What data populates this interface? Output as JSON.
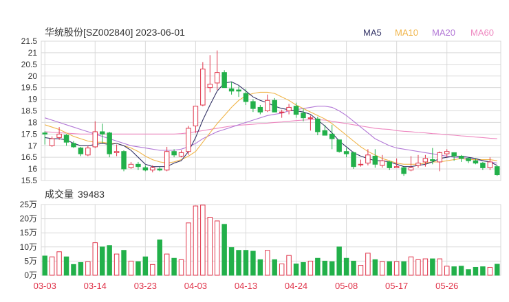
{
  "chart_data": {
    "type": "candlestick",
    "title": "华统股份[SZ002840] 2023-06-01",
    "legend": [
      {
        "label": "MA5",
        "color": "#333366"
      },
      {
        "label": "MA10",
        "color": "#f0b448"
      },
      {
        "label": "MA20",
        "color": "#b277d6"
      },
      {
        "label": "MA60",
        "color": "#ee88c0"
      }
    ],
    "colors": {
      "up": "#e0344a",
      "down": "#22b04a",
      "grid": "#d9d9d9",
      "axis": "#333333",
      "date": "#e0344a"
    },
    "price_axis": {
      "ylim": [
        15.5,
        21.5
      ],
      "ticks": [
        "21.5",
        "21",
        "20.5",
        "20",
        "19.5",
        "19",
        "18.5",
        "18",
        "17.5",
        "17",
        "16.5",
        "16",
        "15.5"
      ]
    },
    "volume_axis": {
      "label": "成交量",
      "value": "39483",
      "ylim": [
        0,
        25
      ],
      "ticks": [
        "25万",
        "20万",
        "15万",
        "10万",
        "5万",
        "0万"
      ]
    },
    "x_ticks": [
      {
        "label": "03-03",
        "index": 0
      },
      {
        "label": "03-14",
        "index": 7
      },
      {
        "label": "03-23",
        "index": 14
      },
      {
        "label": "04-03",
        "index": 21
      },
      {
        "label": "04-13",
        "index": 28
      },
      {
        "label": "04-24",
        "index": 35
      },
      {
        "label": "05-08",
        "index": 42
      },
      {
        "label": "05-17",
        "index": 49
      },
      {
        "label": "05-26",
        "index": 56
      }
    ],
    "candles": [
      [
        17.55,
        17.5,
        17.62,
        17.05,
        6.8
      ],
      [
        17.0,
        17.3,
        17.4,
        16.95,
        6.5
      ],
      [
        17.35,
        17.5,
        17.8,
        17.25,
        8.3
      ],
      [
        17.45,
        17.15,
        17.5,
        17.0,
        6.5
      ],
      [
        17.1,
        16.95,
        17.2,
        16.9,
        3.8
      ],
      [
        16.9,
        16.65,
        16.95,
        16.55,
        4.5
      ],
      [
        16.6,
        16.9,
        17.0,
        16.55,
        4.8
      ],
      [
        16.95,
        17.6,
        18.05,
        16.9,
        11.5
      ],
      [
        17.6,
        17.5,
        17.95,
        17.1,
        10.0
      ],
      [
        17.55,
        16.65,
        17.6,
        16.5,
        10.5
      ],
      [
        16.7,
        16.75,
        17.05,
        16.55,
        7.5
      ],
      [
        16.75,
        16.0,
        16.8,
        15.9,
        8.8
      ],
      [
        16.05,
        16.2,
        16.3,
        16.0,
        5.0
      ],
      [
        16.2,
        16.1,
        16.3,
        15.95,
        4.8
      ],
      [
        16.05,
        15.95,
        16.15,
        15.9,
        6.5
      ],
      [
        15.95,
        16.05,
        16.15,
        15.85,
        3.8
      ],
      [
        16.0,
        15.95,
        16.1,
        15.9,
        12.5
      ],
      [
        15.95,
        16.75,
        16.95,
        15.9,
        7.5
      ],
      [
        16.75,
        16.6,
        16.85,
        16.5,
        6.0
      ],
      [
        16.55,
        16.7,
        16.8,
        16.5,
        5.5
      ],
      [
        16.75,
        17.75,
        17.85,
        16.6,
        18.5
      ],
      [
        17.85,
        18.7,
        18.7,
        17.55,
        24.5
      ],
      [
        18.75,
        20.3,
        20.6,
        18.7,
        24.8
      ],
      [
        19.5,
        19.65,
        20.9,
        19.3,
        20.5
      ],
      [
        19.7,
        20.15,
        21.1,
        19.4,
        19.2
      ],
      [
        20.15,
        19.5,
        20.25,
        19.5,
        18.0
      ],
      [
        19.45,
        19.35,
        19.75,
        19.2,
        9.8
      ],
      [
        19.4,
        19.35,
        19.55,
        19.1,
        8.8
      ],
      [
        19.25,
        18.9,
        19.45,
        18.75,
        8.8
      ],
      [
        18.9,
        18.6,
        19.0,
        18.45,
        8.5
      ],
      [
        18.65,
        18.45,
        18.75,
        18.35,
        5.5
      ],
      [
        18.5,
        18.95,
        19.2,
        18.45,
        8.8
      ],
      [
        18.95,
        18.45,
        19.05,
        18.45,
        5.5
      ],
      [
        18.45,
        18.45,
        18.55,
        18.2,
        4.0
      ],
      [
        18.5,
        18.65,
        18.8,
        18.35,
        7.0
      ],
      [
        18.7,
        18.35,
        18.85,
        18.2,
        4.0
      ],
      [
        18.4,
        18.2,
        18.6,
        18.05,
        4.5
      ],
      [
        18.2,
        18.2,
        18.3,
        17.65,
        5.0
      ],
      [
        18.15,
        17.6,
        18.25,
        17.45,
        6.0
      ],
      [
        17.65,
        17.45,
        17.9,
        17.45,
        5.0
      ],
      [
        17.5,
        17.3,
        17.9,
        16.85,
        4.8
      ],
      [
        17.25,
        16.75,
        17.25,
        16.7,
        10.0
      ],
      [
        16.75,
        16.65,
        16.9,
        16.5,
        6.0
      ],
      [
        16.7,
        16.1,
        16.75,
        16.0,
        5.0
      ],
      [
        16.2,
        16.2,
        16.4,
        16.1,
        3.5
      ],
      [
        16.25,
        16.6,
        16.85,
        16.15,
        7.8
      ],
      [
        16.55,
        16.2,
        16.85,
        16.05,
        5.5
      ],
      [
        16.15,
        16.35,
        16.6,
        16.05,
        4.8
      ],
      [
        16.3,
        16.05,
        16.35,
        15.95,
        4.8
      ],
      [
        16.05,
        16.1,
        16.45,
        16.05,
        4.8
      ],
      [
        16.05,
        15.8,
        16.1,
        15.7,
        4.8
      ],
      [
        15.95,
        16.05,
        16.55,
        15.9,
        6.5
      ],
      [
        16.15,
        16.25,
        16.6,
        16.05,
        5.5
      ],
      [
        16.3,
        16.45,
        16.6,
        16.1,
        5.8
      ],
      [
        16.4,
        16.35,
        16.9,
        16.2,
        5.8
      ],
      [
        16.3,
        16.7,
        16.75,
        15.9,
        5.8
      ],
      [
        16.65,
        16.75,
        16.85,
        16.5,
        3.2
      ],
      [
        16.7,
        16.55,
        16.7,
        16.35,
        3.0
      ],
      [
        16.55,
        16.45,
        16.6,
        16.3,
        3.2
      ],
      [
        16.45,
        16.35,
        16.5,
        16.25,
        2.0
      ],
      [
        16.35,
        16.25,
        16.45,
        16.2,
        2.8
      ],
      [
        16.25,
        16.05,
        16.3,
        15.95,
        3.0
      ],
      [
        16.05,
        16.3,
        16.5,
        15.95,
        2.8
      ],
      [
        16.1,
        15.75,
        16.15,
        15.7,
        3.9
      ]
    ],
    "ma5": [
      17.35,
      17.3,
      17.3,
      17.25,
      17.1,
      17.0,
      17.0,
      17.05,
      17.1,
      17.05,
      17.1,
      17.0,
      16.8,
      16.5,
      16.2,
      16.1,
      16.1,
      16.1,
      16.25,
      16.35,
      16.75,
      17.35,
      18.1,
      18.75,
      19.35,
      19.7,
      19.75,
      19.6,
      19.35,
      19.1,
      18.95,
      18.85,
      18.7,
      18.6,
      18.55,
      18.5,
      18.45,
      18.35,
      18.1,
      17.85,
      17.55,
      17.2,
      16.95,
      16.7,
      16.55,
      16.45,
      16.35,
      16.35,
      16.3,
      16.2,
      16.1,
      16.1,
      16.15,
      16.2,
      16.3,
      16.45,
      16.5,
      16.55,
      16.55,
      16.5,
      16.45,
      16.35,
      16.3,
      16.15
    ],
    "ma10": [
      17.9,
      17.8,
      17.7,
      17.55,
      17.4,
      17.3,
      17.2,
      17.15,
      17.15,
      17.1,
      17.1,
      17.0,
      16.9,
      16.75,
      16.55,
      16.4,
      16.3,
      16.25,
      16.3,
      16.4,
      16.55,
      16.75,
      17.15,
      17.55,
      17.95,
      18.3,
      18.65,
      18.95,
      19.15,
      19.25,
      19.3,
      19.3,
      19.25,
      19.1,
      18.95,
      18.75,
      18.6,
      18.45,
      18.3,
      18.15,
      17.95,
      17.7,
      17.45,
      17.2,
      16.95,
      16.75,
      16.6,
      16.45,
      16.35,
      16.25,
      16.2,
      16.2,
      16.2,
      16.25,
      16.3,
      16.3,
      16.35,
      16.4,
      16.45,
      16.4,
      16.4,
      16.4,
      16.4,
      16.35
    ],
    "ma20": [
      18.2,
      18.1,
      18.0,
      17.9,
      17.8,
      17.7,
      17.6,
      17.5,
      17.4,
      17.3,
      17.2,
      17.1,
      17.0,
      16.95,
      16.9,
      16.85,
      16.8,
      16.8,
      16.8,
      16.85,
      16.95,
      17.1,
      17.3,
      17.45,
      17.6,
      17.7,
      17.8,
      17.9,
      18.0,
      18.1,
      18.2,
      18.3,
      18.35,
      18.4,
      18.5,
      18.55,
      18.6,
      18.65,
      18.7,
      18.7,
      18.65,
      18.5,
      18.3,
      18.05,
      17.8,
      17.55,
      17.3,
      17.15,
      17.0,
      16.9,
      16.85,
      16.8,
      16.75,
      16.7,
      16.65,
      16.6,
      16.55,
      16.5,
      16.5,
      16.45,
      16.4,
      16.35,
      16.3,
      16.25
    ],
    "ma60": [
      17.6,
      17.58,
      17.56,
      17.54,
      17.52,
      17.5,
      17.5,
      17.5,
      17.5,
      17.5,
      17.5,
      17.5,
      17.5,
      17.5,
      17.5,
      17.5,
      17.5,
      17.5,
      17.5,
      17.52,
      17.55,
      17.6,
      17.65,
      17.7,
      17.75,
      17.8,
      17.85,
      17.88,
      17.9,
      17.92,
      17.95,
      17.97,
      18.0,
      18.02,
      18.05,
      18.08,
      18.1,
      18.12,
      18.12,
      18.1,
      18.05,
      18.0,
      17.95,
      17.9,
      17.85,
      17.8,
      17.75,
      17.72,
      17.7,
      17.65,
      17.62,
      17.6,
      17.57,
      17.55,
      17.52,
      17.5,
      17.47,
      17.45,
      17.42,
      17.4,
      17.37,
      17.35,
      17.32,
      17.3
    ]
  }
}
